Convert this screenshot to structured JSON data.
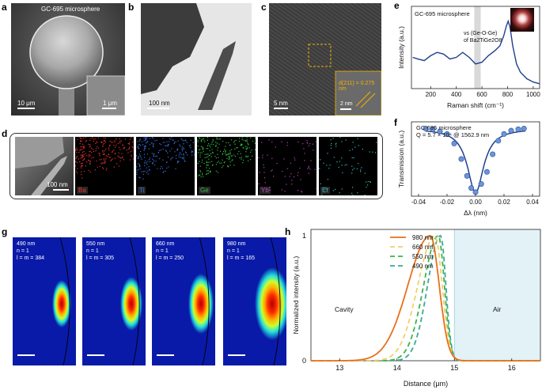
{
  "panel_labels": {
    "a": "a",
    "b": "b",
    "c": "c",
    "d": "d",
    "e": "e",
    "f": "f",
    "g": "g",
    "h": "h"
  },
  "panel_a": {
    "title": "GC-695 microsphere",
    "scale_main": "10 μm",
    "scale_inset": "1 μm"
  },
  "panel_b": {
    "scale": "100 nm"
  },
  "panel_c": {
    "scale_main": "5 nm",
    "scale_inset": "2 nm",
    "d_spacing": "d(211) = 0.275 nm"
  },
  "panel_d": {
    "scale": "100 nm",
    "elements": [
      "Ba",
      "Ti",
      "Ge",
      "Yb",
      "Er"
    ],
    "element_colors": [
      "#e83030",
      "#3a6fe0",
      "#35c040",
      "#c040c0",
      "#30c0c0"
    ]
  },
  "panel_g": {
    "modes": [
      {
        "wavelength": "490 nm",
        "n": "n = 1",
        "lm": "l = m = 384"
      },
      {
        "wavelength": "550 nm",
        "n": "n = 1",
        "lm": "l = m = 305"
      },
      {
        "wavelength": "660 nm",
        "n": "n = 1",
        "lm": "l = m = 250"
      },
      {
        "wavelength": "980 nm",
        "n": "n = 1",
        "lm": "l = m = 165"
      }
    ]
  },
  "chart_data": [
    {
      "id": "e",
      "type": "line",
      "title": "GC-695 microsphere",
      "annotation": "νs (Ge-O-Ge) of Ba2TiGe2O8",
      "xlabel": "Raman shift (cm⁻¹)",
      "ylabel": "Intensity (a.u.)",
      "xlim": [
        50,
        1050
      ],
      "ylim": [
        0,
        1
      ],
      "xticks": [
        200,
        400,
        600,
        800,
        1000
      ],
      "highlight_x": [
        540,
        590
      ],
      "series": [
        {
          "name": "Raman",
          "color": "#1f3f8f",
          "x": [
            60,
            100,
            150,
            200,
            250,
            300,
            350,
            400,
            450,
            500,
            550,
            600,
            650,
            700,
            740,
            770,
            790,
            805,
            820,
            840,
            870,
            900,
            950,
            1000,
            1050
          ],
          "y": [
            0.38,
            0.36,
            0.34,
            0.4,
            0.44,
            0.42,
            0.36,
            0.38,
            0.44,
            0.38,
            0.3,
            0.32,
            0.4,
            0.46,
            0.52,
            0.64,
            0.76,
            0.82,
            0.74,
            0.52,
            0.3,
            0.2,
            0.12,
            0.08,
            0.06
          ]
        }
      ]
    },
    {
      "id": "f",
      "type": "scatter",
      "title": "GC-695 microsphere",
      "subtitle": "Q = 5.7 × 10⁴ @ 1562.9 nm",
      "xlabel": "Δλ (nm)",
      "ylabel": "Transmission (a.u.)",
      "xlim": [
        -0.045,
        0.045
      ],
      "ylim": [
        0,
        1.1
      ],
      "xticks": [
        -0.04,
        -0.02,
        0.0,
        0.02,
        0.04
      ],
      "points": {
        "x": [
          -0.035,
          -0.03,
          -0.025,
          -0.02,
          -0.015,
          -0.01,
          -0.006,
          -0.003,
          0.0,
          0.004,
          0.008,
          0.012,
          0.016,
          0.02,
          0.025,
          0.03,
          0.034
        ],
        "y": [
          1.0,
          0.99,
          0.96,
          0.92,
          0.78,
          0.55,
          0.3,
          0.12,
          0.06,
          0.18,
          0.36,
          0.62,
          0.82,
          0.92,
          0.97,
          0.99,
          1.0
        ]
      },
      "fit_center": 0.0,
      "fit_width": 0.011,
      "fit_depth": 0.95
    },
    {
      "id": "h",
      "type": "line",
      "xlabel": "Distance (μm)",
      "ylabel": "Normalized intensity (a.u.)",
      "xlim": [
        12.5,
        16.5
      ],
      "ylim": [
        0,
        1.05
      ],
      "xticks": [
        13,
        14,
        15,
        16
      ],
      "yticks": [
        0,
        1
      ],
      "regions": {
        "cavity": "Cavity",
        "air": "Air",
        "boundary": 15.0
      },
      "series": [
        {
          "name": "980 nm",
          "color": "#e8701a",
          "dash": "",
          "peak": 14.58,
          "w_left": 0.55,
          "w_right": 0.22
        },
        {
          "name": "660 nm",
          "color": "#f2d068",
          "dash": "6,4",
          "peak": 14.66,
          "w_left": 0.42,
          "w_right": 0.18
        },
        {
          "name": "550 nm",
          "color": "#3db34a",
          "dash": "6,4",
          "peak": 14.72,
          "w_left": 0.36,
          "w_right": 0.15
        },
        {
          "name": "490 nm",
          "color": "#3aa89a",
          "dash": "6,4",
          "peak": 14.76,
          "w_left": 0.32,
          "w_right": 0.13
        }
      ]
    }
  ]
}
